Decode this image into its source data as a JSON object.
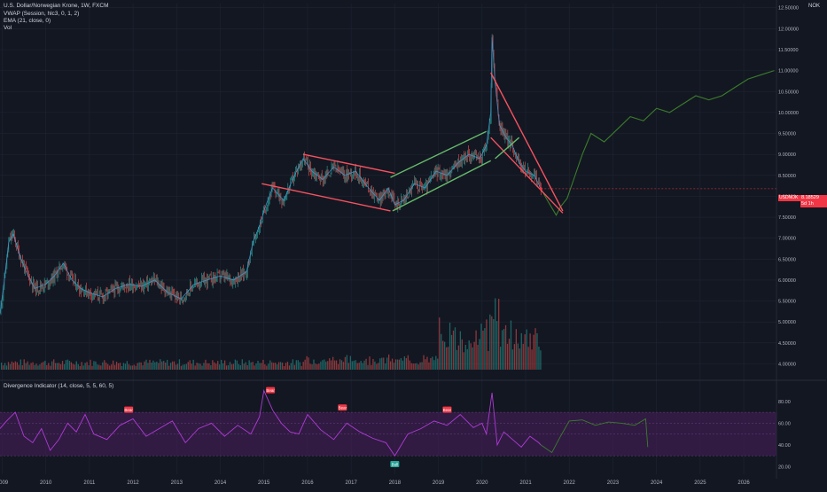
{
  "header": {
    "title": "U.S. Dollar/Norwegian Krone, 1W, FXCM",
    "indicators": [
      "VWAP (Session, hlc3, 0, 1, 2)",
      "EMA (21, close, 0)",
      "Vol"
    ],
    "currency": "NOK"
  },
  "price_tag": {
    "symbol": "USDNOK",
    "value": "8.18529",
    "sub": "5d 1h"
  },
  "colors": {
    "background": "#131722",
    "grid": "#1f2433",
    "candle_up": "#26a69a",
    "candle_down": "#ef5350",
    "ema": "#3179f5",
    "vwap": "#2962ff",
    "red_lines": "#f7525f",
    "green_lines": "#66bb6a",
    "projection": "#3a7d2a",
    "rsi": "#b03ad6",
    "rsi_band": "#4a1f5e"
  },
  "chart_data": [
    {
      "type": "line",
      "title": "U.S. Dollar/Norwegian Krone, 1W, FXCM",
      "ylabel": "NOK",
      "ylim": [
        3.65,
        12.6
      ],
      "xlim": [
        2008.95,
        2026.75
      ],
      "x_ticks": [
        "2009",
        "2010",
        "2011",
        "2012",
        "2013",
        "2014",
        "2015",
        "2016",
        "2017",
        "2018",
        "2019",
        "2020",
        "2021",
        "2022",
        "2023",
        "2024",
        "2025",
        "2026"
      ],
      "y_ticks": [
        "4.00000",
        "4.50000",
        "5.00000",
        "5.50000",
        "6.00000",
        "6.50000",
        "7.00000",
        "7.50000",
        "8.00000",
        "8.50000",
        "9.00000",
        "9.50000",
        "10.00000",
        "10.50000",
        "11.00000",
        "11.50000",
        "12.00000",
        "12.50000"
      ],
      "series": [
        {
          "name": "USDNOK",
          "x": [
            2008.95,
            2009.05,
            2009.15,
            2009.25,
            2009.4,
            2009.55,
            2009.75,
            2010.0,
            2010.2,
            2010.4,
            2010.6,
            2010.8,
            2011.0,
            2011.3,
            2011.6,
            2011.9,
            2012.2,
            2012.5,
            2012.8,
            2013.1,
            2013.4,
            2013.7,
            2014.0,
            2014.3,
            2014.6,
            2014.75,
            2014.9,
            2015.05,
            2015.2,
            2015.45,
            2015.7,
            2015.9,
            2016.1,
            2016.35,
            2016.6,
            2016.85,
            2017.1,
            2017.4,
            2017.65,
            2017.85,
            2018.0,
            2018.2,
            2018.45,
            2018.7,
            2018.95,
            2019.2,
            2019.45,
            2019.7,
            2019.95,
            2020.1,
            2020.2,
            2020.23,
            2020.3,
            2020.4,
            2020.55,
            2020.7,
            2020.85,
            2021.0,
            2021.2,
            2021.35
          ],
          "values": [
            5.2,
            6.0,
            6.9,
            7.1,
            6.6,
            6.2,
            5.8,
            5.9,
            6.1,
            6.4,
            6.0,
            5.8,
            5.7,
            5.6,
            5.8,
            5.9,
            5.85,
            6.0,
            5.7,
            5.55,
            5.9,
            6.0,
            6.1,
            6.0,
            6.2,
            6.9,
            7.3,
            7.8,
            8.2,
            7.9,
            8.5,
            8.9,
            8.6,
            8.4,
            8.7,
            8.5,
            8.6,
            8.2,
            7.9,
            8.2,
            7.8,
            7.9,
            8.3,
            8.2,
            8.6,
            8.5,
            8.8,
            9.0,
            8.9,
            9.2,
            10.0,
            11.8,
            10.7,
            9.7,
            9.4,
            9.2,
            8.8,
            8.6,
            8.5,
            8.18
          ]
        },
        {
          "name": "Projection",
          "x": [
            2021.35,
            2021.5,
            2021.7,
            2021.8,
            2021.95,
            2022.1,
            2022.3,
            2022.5,
            2022.8,
            2023.1,
            2023.4,
            2023.7,
            2024.0,
            2024.3,
            2024.6,
            2024.9,
            2025.2,
            2025.5,
            2025.8,
            2026.1,
            2026.4,
            2026.7
          ],
          "values": [
            8.18,
            7.9,
            7.55,
            7.75,
            7.95,
            8.4,
            9.0,
            9.5,
            9.3,
            9.6,
            9.9,
            9.8,
            10.1,
            10.0,
            10.2,
            10.4,
            10.3,
            10.4,
            10.6,
            10.8,
            10.9,
            11.0
          ]
        },
        {
          "name": "Red channel top",
          "x": [
            2015.9,
            2018.0
          ],
          "values": [
            9.0,
            8.55
          ]
        },
        {
          "name": "Red channel bottom",
          "x": [
            2014.95,
            2017.9
          ],
          "values": [
            8.3,
            7.65
          ]
        },
        {
          "name": "Green channel top",
          "x": [
            2017.9,
            2020.1
          ],
          "values": [
            8.45,
            9.55
          ]
        },
        {
          "name": "Green channel bottom",
          "x": [
            2017.95,
            2020.2
          ],
          "values": [
            7.65,
            8.85
          ]
        },
        {
          "name": "Wedge top",
          "x": [
            2020.2,
            2021.85
          ],
          "values": [
            10.95,
            7.65
          ]
        },
        {
          "name": "Wedge bottom",
          "x": [
            2020.2,
            2021.85
          ],
          "values": [
            9.4,
            7.6
          ]
        },
        {
          "name": "Green trendline",
          "x": [
            2020.3,
            2020.85
          ],
          "values": [
            8.9,
            9.4
          ]
        }
      ]
    },
    {
      "type": "line",
      "title": "Divergence Indicator (14, close, 5, 5, 60, 5)",
      "ylim": [
        13,
        97
      ],
      "y_ticks": [
        "20.00",
        "40.00",
        "60.00",
        "80.00"
      ],
      "series": [
        {
          "name": "RSI",
          "x": [
            2008.95,
            2009.1,
            2009.3,
            2009.5,
            2009.7,
            2009.9,
            2010.1,
            2010.3,
            2010.5,
            2010.7,
            2010.9,
            2011.1,
            2011.4,
            2011.7,
            2012.0,
            2012.3,
            2012.6,
            2012.9,
            2013.2,
            2013.5,
            2013.8,
            2014.1,
            2014.4,
            2014.7,
            2014.9,
            2015.0,
            2015.2,
            2015.4,
            2015.6,
            2015.8,
            2016.0,
            2016.3,
            2016.6,
            2016.9,
            2017.2,
            2017.5,
            2017.8,
            2018.0,
            2018.3,
            2018.6,
            2018.9,
            2019.2,
            2019.5,
            2019.8,
            2020.0,
            2020.1,
            2020.23,
            2020.35,
            2020.5,
            2020.7,
            2020.9,
            2021.1,
            2021.3,
            2021.35
          ],
          "values": [
            55,
            62,
            70,
            48,
            42,
            55,
            35,
            45,
            60,
            52,
            68,
            50,
            45,
            58,
            64,
            48,
            55,
            62,
            42,
            55,
            60,
            48,
            58,
            50,
            66,
            90,
            72,
            60,
            52,
            50,
            68,
            54,
            45,
            60,
            52,
            46,
            42,
            30,
            50,
            55,
            62,
            58,
            68,
            56,
            60,
            50,
            88,
            40,
            52,
            45,
            38,
            48,
            42,
            40
          ]
        },
        {
          "name": "RSI projection",
          "x": [
            2021.35,
            2021.6,
            2021.8,
            2022.0,
            2022.3,
            2022.6,
            2022.9,
            2023.2,
            2023.5,
            2023.75,
            2023.8
          ],
          "values": [
            40,
            33,
            48,
            62,
            63,
            58,
            61,
            60,
            58,
            64,
            38
          ]
        }
      ],
      "bands": {
        "upper": 70,
        "mid_upper": 60,
        "mid_lower": 50,
        "lower": 30
      },
      "annotations": [
        {
          "label": "Bear",
          "x": 2011.9,
          "y": 72
        },
        {
          "label": "Bear",
          "x": 2015.15,
          "y": 90
        },
        {
          "label": "Bear",
          "x": 2016.8,
          "y": 74
        },
        {
          "label": "Bear",
          "x": 2019.2,
          "y": 72
        },
        {
          "label": "Bull",
          "x": 2018.0,
          "y": 22
        }
      ],
      "x_ticks": [
        "2009",
        "2010",
        "2011",
        "2012",
        "2013",
        "2014",
        "2015",
        "2016",
        "2017",
        "2018",
        "2019",
        "2020",
        "2021",
        "2022",
        "2023",
        "2024",
        "2025",
        "2026"
      ]
    }
  ]
}
